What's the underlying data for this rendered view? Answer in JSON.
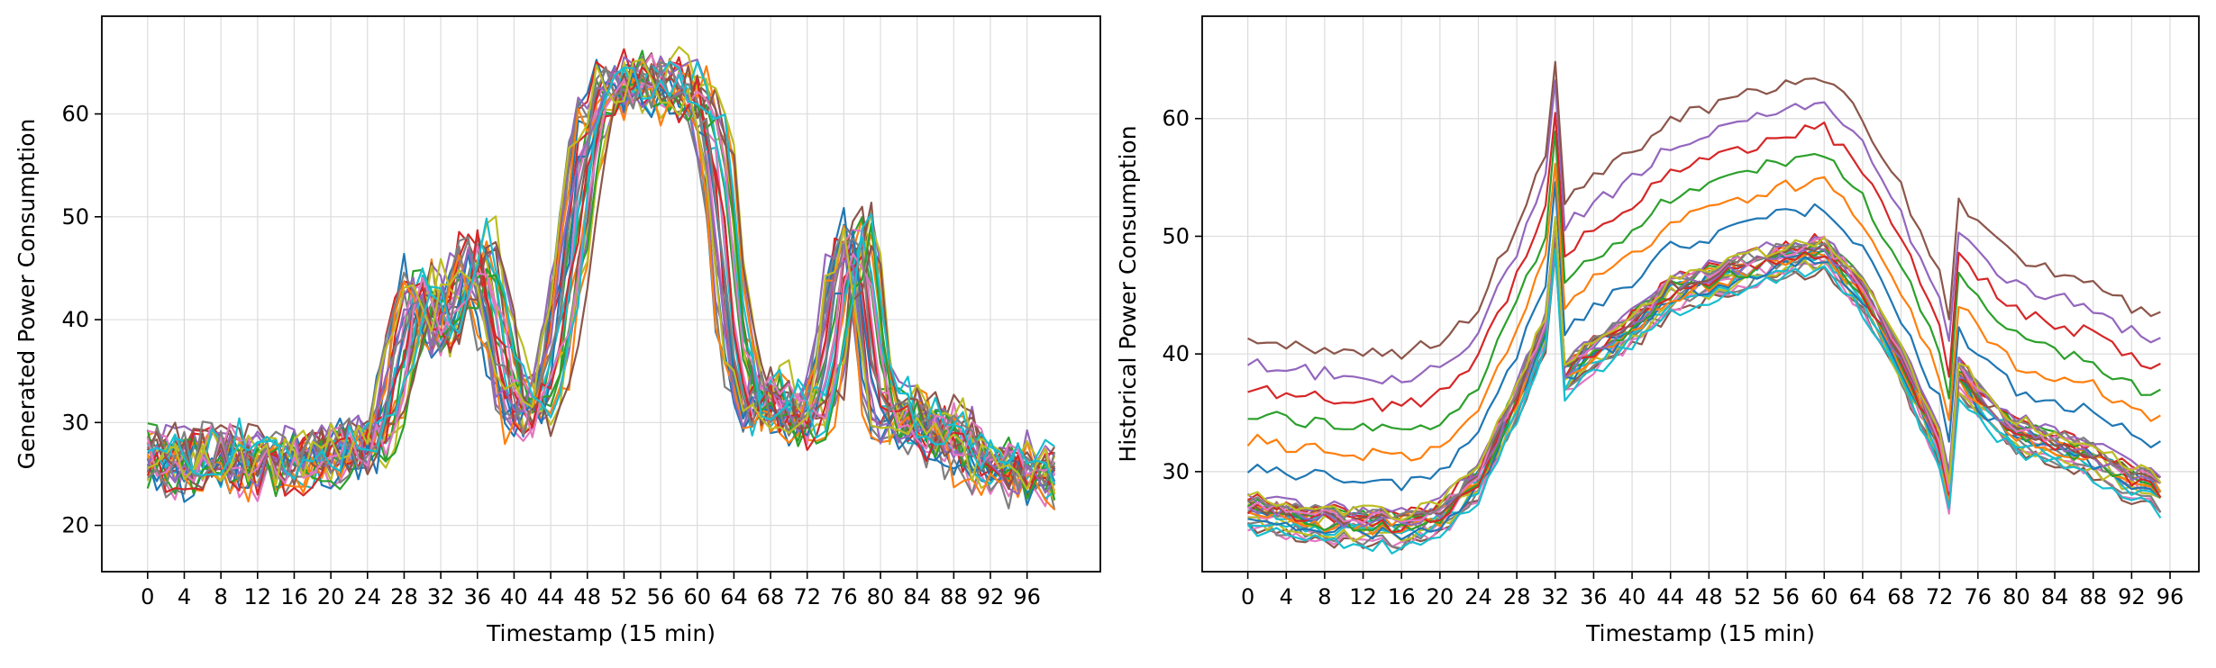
{
  "colors": [
    "#1f77b4",
    "#ff7f0e",
    "#2ca02c",
    "#d62728",
    "#9467bd",
    "#8c564b",
    "#e377c2",
    "#7f7f7f",
    "#bcbd22",
    "#17becf"
  ],
  "chart_data": [
    {
      "type": "line",
      "xlabel": "Timestamp (15 min)",
      "ylabel": "Generated Power Consumption",
      "xlim": [
        -5,
        104
      ],
      "ylim": [
        15.5,
        69.5
      ],
      "xticks": [
        "0",
        "4",
        "8",
        "12",
        "16",
        "20",
        "24",
        "28",
        "32",
        "36",
        "40",
        "44",
        "48",
        "52",
        "56",
        "60",
        "64",
        "68",
        "72",
        "76",
        "80",
        "84",
        "88",
        "92",
        "96"
      ],
      "yticks": [
        "20",
        "30",
        "40",
        "50",
        "60"
      ],
      "grid": true,
      "series_count": 30,
      "profile_points": [
        [
          0,
          27
        ],
        [
          4,
          26
        ],
        [
          8,
          27
        ],
        [
          12,
          26
        ],
        [
          16,
          26
        ],
        [
          20,
          27
        ],
        [
          24,
          28
        ],
        [
          26,
          29
        ],
        [
          28,
          38
        ],
        [
          30,
          44
        ],
        [
          32,
          38
        ],
        [
          34,
          42
        ],
        [
          36,
          48
        ],
        [
          38,
          40
        ],
        [
          40,
          32
        ],
        [
          42,
          31
        ],
        [
          44,
          34
        ],
        [
          46,
          44
        ],
        [
          48,
          58
        ],
        [
          50,
          62
        ],
        [
          52,
          63
        ],
        [
          56,
          63
        ],
        [
          60,
          62
        ],
        [
          62,
          57
        ],
        [
          64,
          40
        ],
        [
          66,
          31
        ],
        [
          68,
          33
        ],
        [
          70,
          31
        ],
        [
          72,
          30
        ],
        [
          74,
          33
        ],
        [
          76,
          45
        ],
        [
          78,
          49
        ],
        [
          80,
          31
        ],
        [
          82,
          31
        ],
        [
          84,
          30
        ],
        [
          86,
          29
        ],
        [
          88,
          29
        ],
        [
          90,
          27
        ],
        [
          92,
          26
        ],
        [
          94,
          26
        ],
        [
          96,
          25
        ],
        [
          99,
          25
        ]
      ]
    },
    {
      "type": "line",
      "xlabel": "Timestamp (15 min)",
      "ylabel": "Historical Power Consumption",
      "xlim": [
        -4.75,
        99
      ],
      "ylim": [
        21.5,
        68.7
      ],
      "xticks": [
        "0",
        "4",
        "8",
        "12",
        "16",
        "20",
        "24",
        "28",
        "32",
        "36",
        "40",
        "44",
        "48",
        "52",
        "56",
        "60",
        "64",
        "68",
        "72",
        "76",
        "80",
        "84",
        "88",
        "92",
        "96"
      ],
      "yticks": [
        "30",
        "40",
        "50",
        "60"
      ],
      "grid": true,
      "series_count": 30,
      "profile_points": [
        [
          0,
          26.5
        ],
        [
          8,
          25.5
        ],
        [
          16,
          25
        ],
        [
          20,
          26
        ],
        [
          24,
          29
        ],
        [
          28,
          36
        ],
        [
          31,
          42
        ],
        [
          32,
          50
        ],
        [
          33,
          38
        ],
        [
          36,
          40
        ],
        [
          40,
          42
        ],
        [
          44,
          45
        ],
        [
          52,
          47
        ],
        [
          56,
          48
        ],
        [
          60,
          48.5
        ],
        [
          64,
          45
        ],
        [
          68,
          39
        ],
        [
          72,
          32
        ],
        [
          73,
          28
        ],
        [
          74,
          38
        ],
        [
          76,
          36
        ],
        [
          80,
          33
        ],
        [
          88,
          31
        ],
        [
          92,
          29
        ],
        [
          95,
          28
        ]
      ]
    }
  ]
}
